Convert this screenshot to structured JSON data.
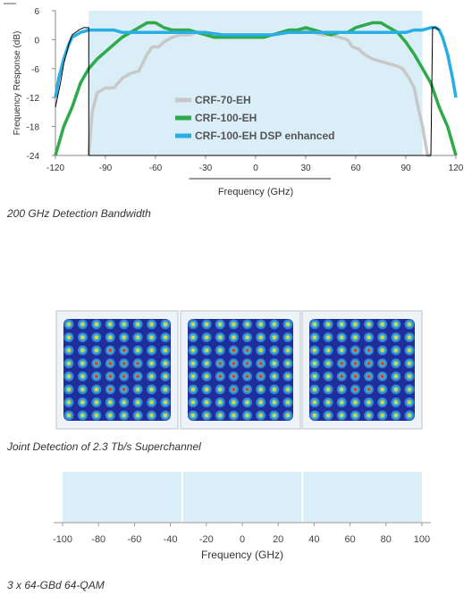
{
  "chart_data": [
    {
      "type": "line",
      "title": "",
      "xlabel": "Frequency (GHz)",
      "ylabel": "Frequency Response (dB)",
      "xlim": [
        -120,
        120
      ],
      "ylim": [
        -24,
        6
      ],
      "xticks": [
        "-120",
        "-90",
        "-60",
        "-30",
        "0",
        "30",
        "60",
        "90",
        "120"
      ],
      "yticks": [
        "6",
        "0",
        "-6",
        "-12",
        "-18",
        "-24"
      ],
      "grid": false,
      "legend_position": "bottom-center",
      "shaded_band": [
        -100,
        100
      ],
      "series": [
        {
          "name": "CRF-70-EH",
          "color": "#c8c8c8",
          "x": [
            -100,
            -98,
            -95,
            -90,
            -85,
            -80,
            -75,
            -70,
            -65,
            -62,
            -58,
            -55,
            -50,
            -45,
            -40,
            -35,
            -30,
            -25,
            -20,
            -15,
            -10,
            -5,
            0,
            5,
            10,
            15,
            20,
            25,
            30,
            35,
            40,
            45,
            50,
            55,
            58,
            62,
            65,
            70,
            75,
            80,
            85,
            88,
            92,
            95,
            98,
            100,
            103,
            105
          ],
          "y": [
            -24,
            -15,
            -11,
            -10,
            -10,
            -8,
            -7,
            -6.5,
            -3,
            -1.5,
            -1.5,
            -0.5,
            0.5,
            1,
            1,
            1.5,
            1.5,
            1,
            0.5,
            0.5,
            0.5,
            0.5,
            0.5,
            0.5,
            1,
            1.5,
            2,
            2,
            2,
            1.5,
            1,
            1,
            0.5,
            0,
            -1.5,
            -2,
            -3,
            -4,
            -4.5,
            -5,
            -5.5,
            -6,
            -8,
            -10,
            -15,
            -18,
            -24,
            -24
          ]
        },
        {
          "name": "CRF-100-EH",
          "color": "#2eaa4a",
          "x": [
            -120,
            -115,
            -110,
            -105,
            -100,
            -95,
            -90,
            -85,
            -80,
            -75,
            -70,
            -65,
            -60,
            -55,
            -50,
            -45,
            -40,
            -35,
            -30,
            -25,
            -20,
            -15,
            -10,
            -5,
            0,
            5,
            10,
            15,
            20,
            25,
            30,
            35,
            40,
            45,
            50,
            55,
            60,
            65,
            70,
            75,
            80,
            85,
            90,
            95,
            100,
            105,
            110,
            115,
            120
          ],
          "y": [
            -24,
            -18,
            -14,
            -9,
            -6,
            -4,
            -2.5,
            -1,
            0.5,
            1.5,
            2.5,
            3.5,
            3.5,
            2.5,
            2,
            2,
            2,
            1.5,
            1,
            0.5,
            0.5,
            0.5,
            0.5,
            0.5,
            0.5,
            0.5,
            1,
            1.5,
            2,
            2,
            2.5,
            2,
            1.5,
            1,
            1.5,
            1.5,
            2.5,
            3,
            3.5,
            3.5,
            2.5,
            1.5,
            -0.5,
            -3,
            -6,
            -9,
            -14,
            -18,
            -24
          ]
        },
        {
          "name": "CRF-100-EH DSP enhanced",
          "color": "#29aee3",
          "x": [
            -120,
            -118,
            -115,
            -112,
            -110,
            -105,
            -100,
            -95,
            -90,
            -85,
            -80,
            -75,
            -70,
            -65,
            -60,
            -50,
            -40,
            -30,
            -20,
            -10,
            0,
            10,
            20,
            30,
            40,
            50,
            60,
            65,
            70,
            75,
            80,
            85,
            90,
            95,
            100,
            105,
            108,
            110,
            112,
            115,
            118,
            120
          ],
          "y": [
            -12,
            -8,
            -4,
            -1,
            0.5,
            1.5,
            2,
            2,
            2,
            2,
            1.5,
            1.5,
            1.5,
            1.5,
            1.5,
            1.5,
            1.5,
            1.5,
            1,
            1,
            1,
            1,
            1.5,
            1.5,
            1.5,
            1.5,
            1.5,
            1.5,
            1.5,
            1.5,
            1.5,
            1.5,
            1.5,
            2,
            2,
            2.5,
            2.5,
            2,
            0.5,
            -3,
            -8,
            -12
          ]
        },
        {
          "name": "",
          "color": "#000000",
          "x": [
            -120,
            -117,
            -115,
            -112,
            -110,
            -106,
            -103,
            -101,
            -100,
            -100,
            -90,
            -80,
            -70,
            -60,
            -50,
            -40,
            -30,
            -20,
            -10,
            0,
            10,
            20,
            30,
            40,
            50,
            60,
            70,
            80,
            90,
            100,
            103,
            105,
            106,
            108,
            110
          ],
          "y": [
            -14,
            -9,
            -5,
            -1,
            1,
            2,
            2.5,
            2.5,
            2.5,
            -24,
            -24,
            -24,
            -24,
            -24,
            -24,
            -24,
            -24,
            -24,
            -24,
            -24,
            -24,
            -24,
            -24,
            -24,
            -24,
            -24,
            -24,
            -24,
            -24,
            -24,
            -24,
            -24,
            2.5,
            2.5,
            2
          ]
        }
      ]
    },
    {
      "type": "bar",
      "title": "",
      "xlabel": "Frequency (GHz)",
      "ylabel": "",
      "xlim": [
        -105,
        105
      ],
      "xticks": [
        "-100",
        "-80",
        "-60",
        "-40",
        "-20",
        "0",
        "20",
        "40",
        "60",
        "80",
        "100"
      ],
      "grid": false,
      "bands": [
        {
          "start": -100,
          "end": -34
        },
        {
          "start": -33,
          "end": 33
        },
        {
          "start": 34,
          "end": 100
        }
      ]
    }
  ],
  "captions": {
    "bandwidth": "200 GHz Detection Bandwidth",
    "superchannel": "Joint Detection of 2.3 Tb/s Superchannel",
    "modulation": "3 x 64-GBd 64-QAM"
  },
  "constellations": {
    "count": 3,
    "grid": 8,
    "colors": [
      "#1e2f9c",
      "#3b7fd6",
      "#35c3c7",
      "#e8d33a",
      "#e0402a"
    ]
  }
}
